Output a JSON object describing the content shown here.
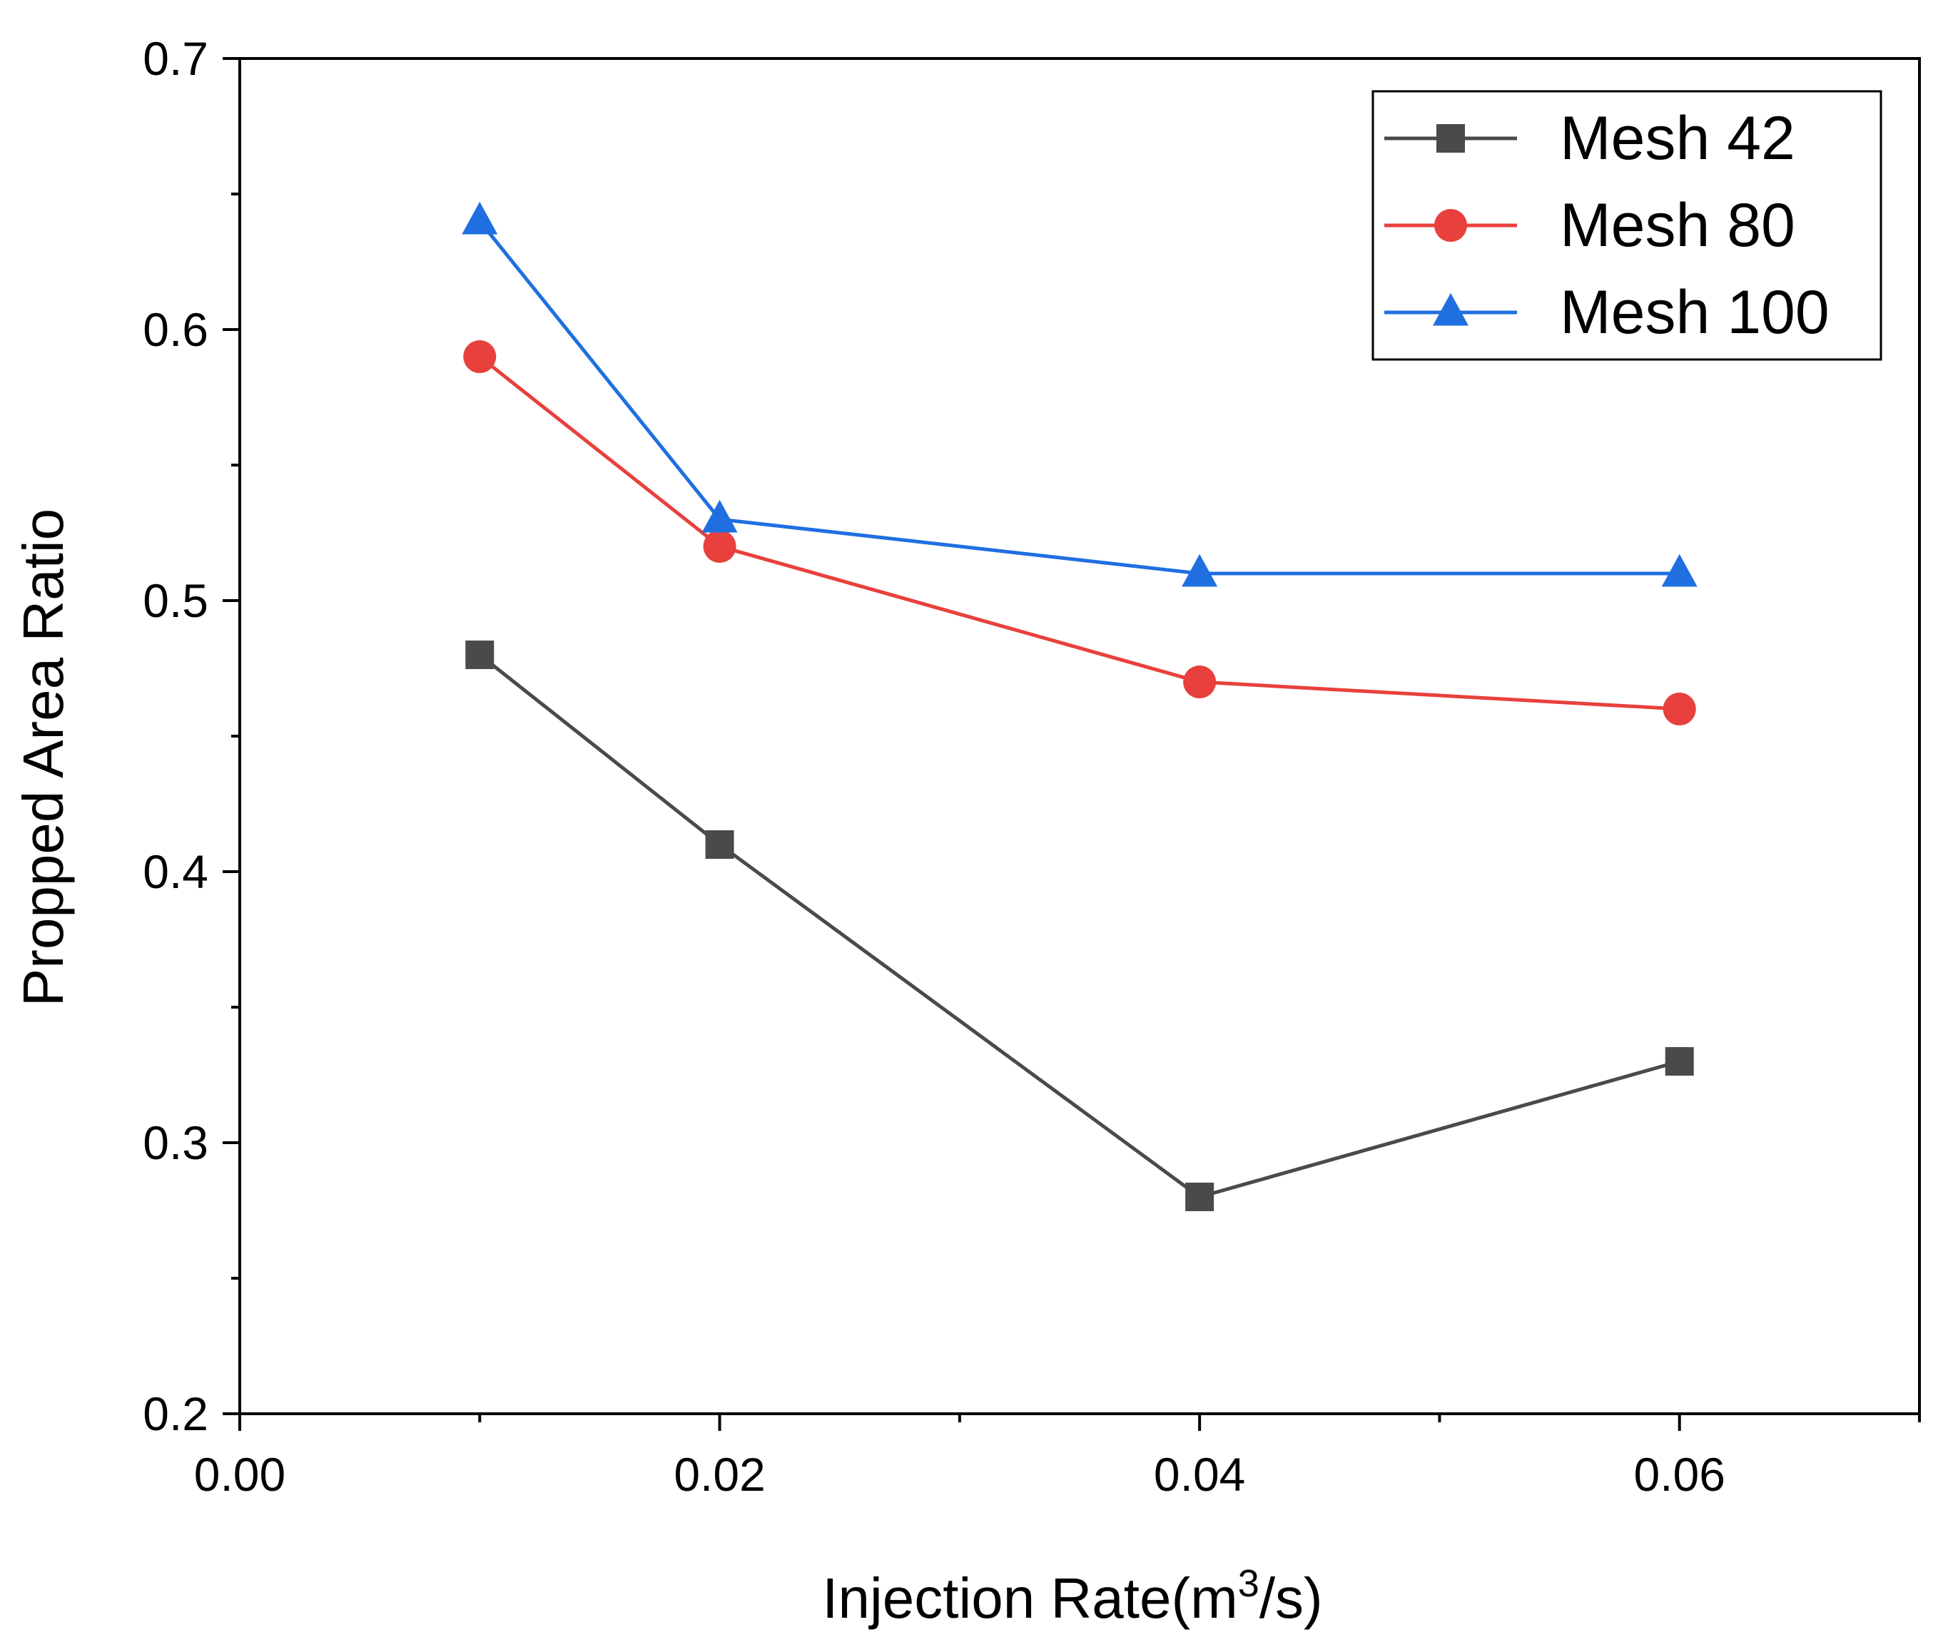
{
  "chart_data": {
    "type": "line",
    "title": "",
    "xlabel": "Injection Rate(m",
    "xlabel_superscript": "3",
    "xlabel_suffix": "/s)",
    "ylabel": "Propped Area Ratio",
    "xlim": [
      0.0,
      0.07
    ],
    "ylim": [
      0.2,
      0.7
    ],
    "x_ticks": [
      0.0,
      0.02,
      0.04,
      0.06
    ],
    "x_tick_labels": [
      "0.00",
      "0.02",
      "0.04",
      "0.06"
    ],
    "x_minor_ticks": [
      0.01,
      0.03,
      0.05,
      0.07
    ],
    "y_ticks": [
      0.2,
      0.3,
      0.4,
      0.5,
      0.6,
      0.7
    ],
    "y_tick_labels": [
      "0.2",
      "0.3",
      "0.4",
      "0.5",
      "0.6",
      "0.7"
    ],
    "y_minor_ticks": [
      0.25,
      0.35,
      0.45,
      0.55,
      0.65
    ],
    "grid": false,
    "legend_position": "top-right",
    "series": [
      {
        "name": "Mesh 42",
        "color": "#4a4a4a",
        "marker": "square",
        "x": [
          0.01,
          0.02,
          0.04,
          0.06
        ],
        "y": [
          0.48,
          0.41,
          0.28,
          0.33
        ]
      },
      {
        "name": "Mesh 80",
        "color": "#e8403c",
        "marker": "circle",
        "x": [
          0.01,
          0.02,
          0.04,
          0.06
        ],
        "y": [
          0.59,
          0.52,
          0.47,
          0.46
        ]
      },
      {
        "name": "Mesh 100",
        "color": "#1f6fe0",
        "marker": "triangle",
        "x": [
          0.01,
          0.02,
          0.04,
          0.06
        ],
        "y": [
          0.64,
          0.53,
          0.51,
          0.51
        ]
      }
    ]
  }
}
